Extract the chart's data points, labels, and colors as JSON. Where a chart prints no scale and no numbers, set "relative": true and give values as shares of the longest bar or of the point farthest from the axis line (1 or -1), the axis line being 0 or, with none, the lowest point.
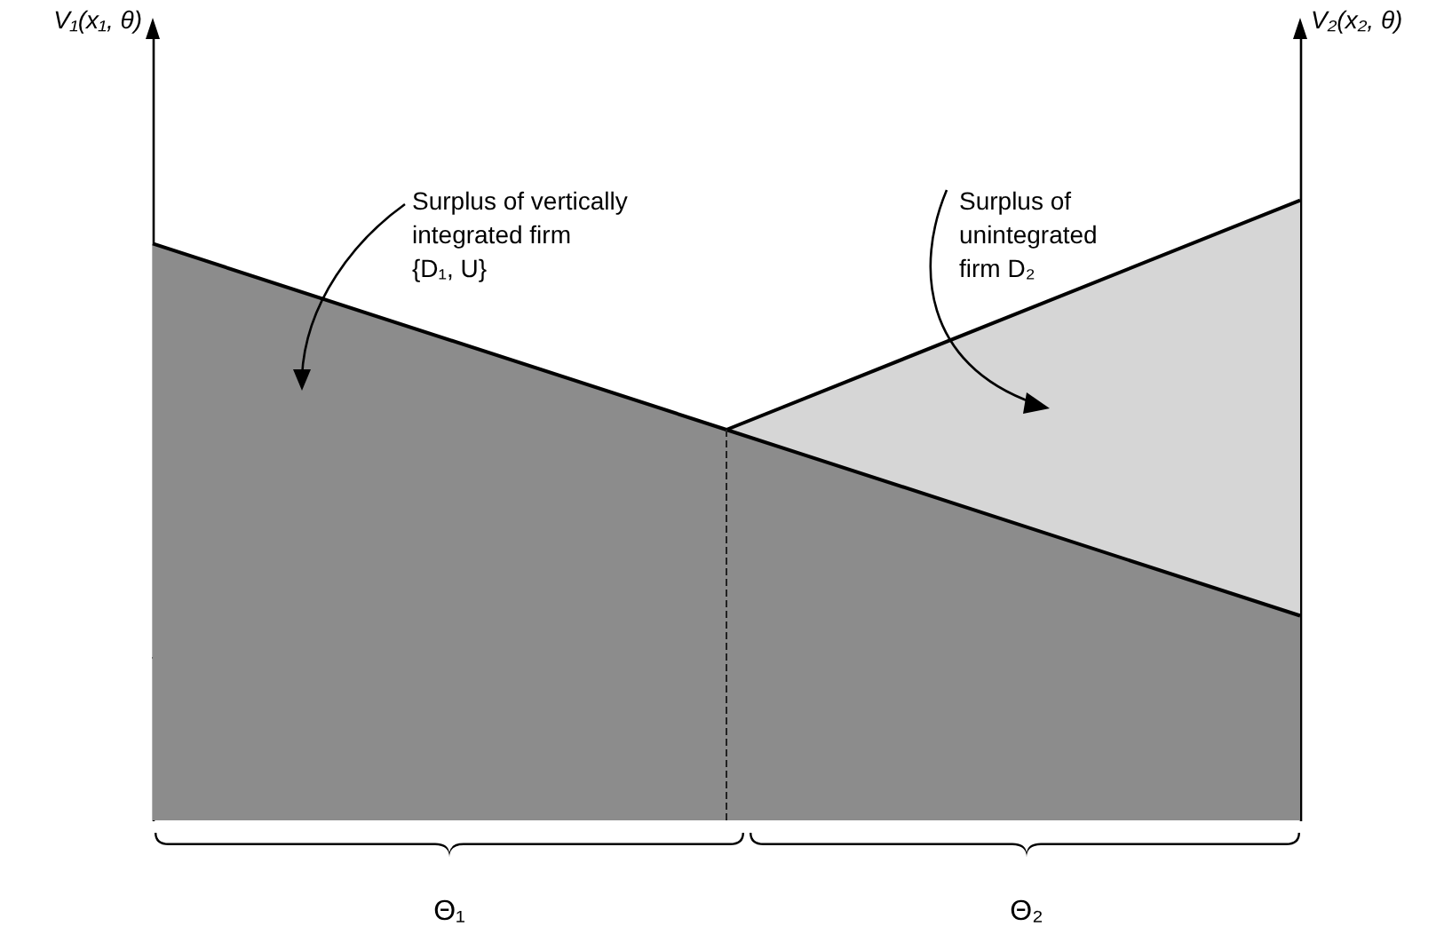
{
  "chart_data": {
    "type": "area",
    "relative": true,
    "categories": [
      null,
      null,
      null
    ],
    "series": [
      {
        "color": "#8c8c8c",
        "values": [
          0.93,
          0.63,
          0.33
        ]
      },
      {
        "color": "#d6d6d6",
        "values": [
          0.26,
          0.63,
          1.0
        ]
      }
    ],
    "annotations": [
      "V₁(x₁, θ)",
      "V₂(x₂, θ)",
      "Surplus of vertically\nintegrated firm\n{D₁, U}",
      "Surplus of\nunintegrated\nfirm D₂",
      "Θ₁",
      "Θ₂"
    ]
  }
}
